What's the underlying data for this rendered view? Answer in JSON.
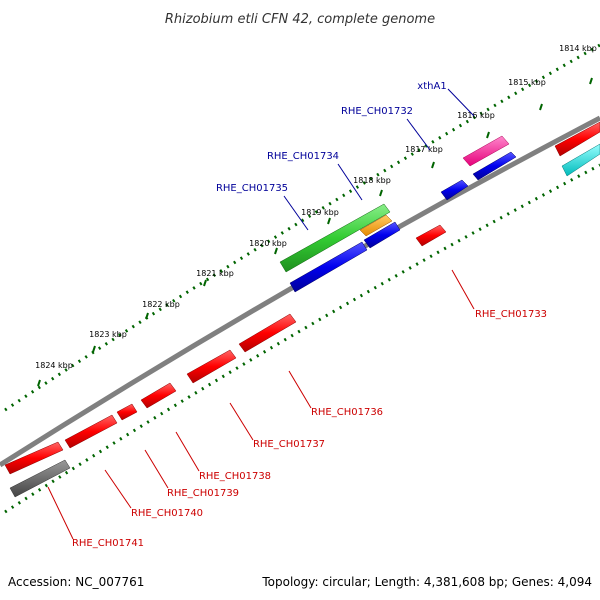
{
  "title": "Rhizobium etli CFN 42, complete genome",
  "accession": "Accession: NC_007761",
  "summary": "Topology: circular; Length: 4,381,608 bp; Genes: 4,094",
  "kbp_ticks": [
    "1814 kbp",
    "1815 kbp",
    "1816 kbp",
    "1817 kbp",
    "1818 kbp",
    "1819 kbp",
    "1820 kbp",
    "1821 kbp",
    "1822 kbp",
    "1823 kbp",
    "1824 kbp"
  ],
  "forward_gene_labels": [
    "xthA1",
    "RHE_CH01732",
    "RHE_CH01734",
    "RHE_CH01735"
  ],
  "reverse_gene_labels": [
    "RHE_CH01733",
    "RHE_CH01736",
    "RHE_CH01737",
    "RHE_CH01738",
    "RHE_CH01739",
    "RHE_CH01740",
    "RHE_CH01741"
  ],
  "colors": {
    "backbone": "#808080",
    "dots": "#006400",
    "forward_label": "#000099",
    "reverse_label": "#cc0000",
    "red": "#ff0000",
    "blue": "#0000ee",
    "green": "#33cc33",
    "orange": "#ff9900",
    "magenta": "#ff33aa",
    "cyan": "#00e5e5",
    "gray": "#666666"
  }
}
